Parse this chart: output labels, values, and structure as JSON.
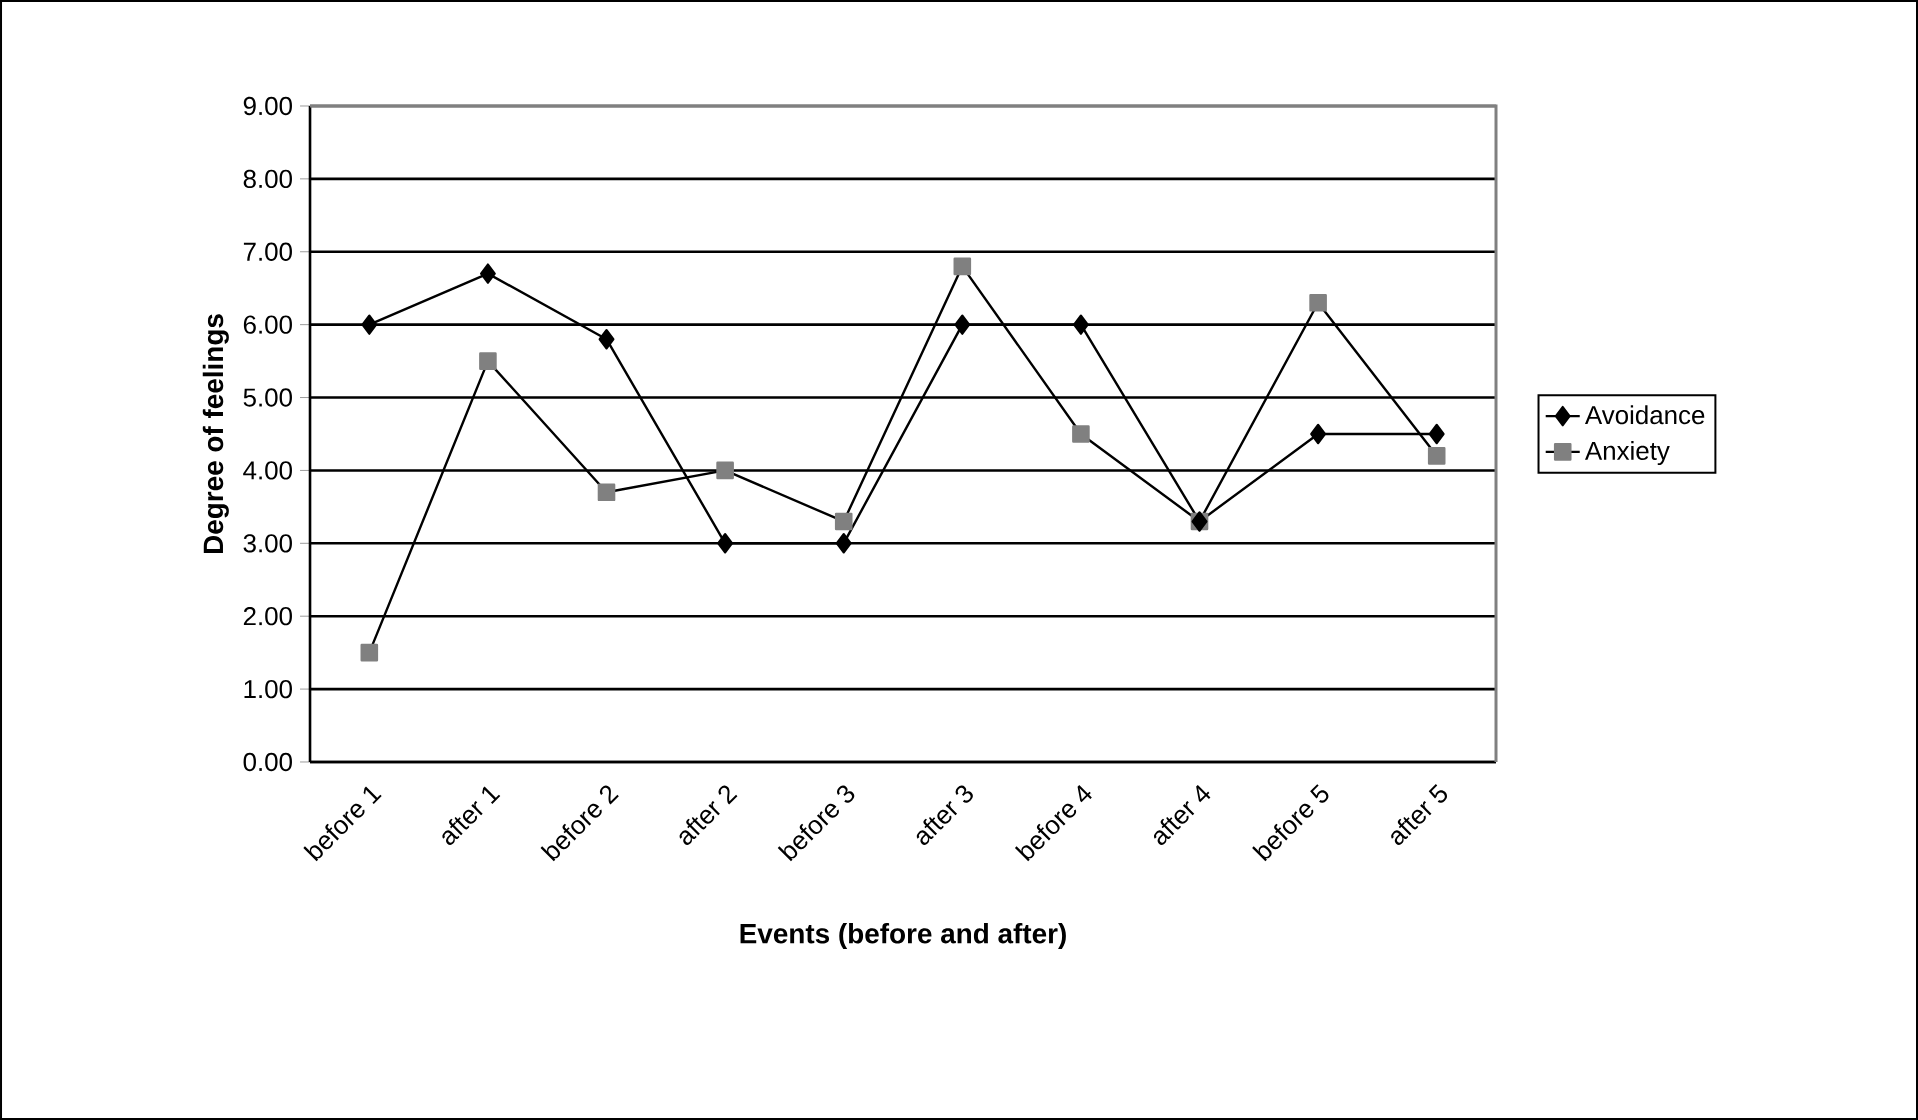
{
  "chart_data": {
    "type": "line",
    "xlabel": "Events (before and after)",
    "ylabel": "Degree of feelings",
    "categories": [
      "before 1",
      "after 1",
      "before 2",
      "after 2",
      "before 3",
      "after 3",
      "before 4",
      "after 4",
      "before 5",
      "after 5"
    ],
    "series": [
      {
        "name": "Avoidance",
        "color": "#000000",
        "marker": "diamond",
        "values": [
          6.0,
          6.7,
          5.8,
          3.0,
          3.0,
          6.0,
          6.0,
          3.3,
          4.5,
          4.5
        ]
      },
      {
        "name": "Anxiety",
        "color": "#808080",
        "marker": "square",
        "values": [
          1.5,
          5.5,
          3.7,
          4.0,
          3.3,
          6.8,
          4.5,
          3.3,
          6.3,
          4.2
        ]
      }
    ],
    "ylim": [
      0,
      9
    ],
    "yticks": [
      {
        "value": 0,
        "label": "0.00"
      },
      {
        "value": 1,
        "label": "1.00"
      },
      {
        "value": 2,
        "label": "2.00"
      },
      {
        "value": 3,
        "label": "3.00"
      },
      {
        "value": 4,
        "label": "4.00"
      },
      {
        "value": 5,
        "label": "5.00"
      },
      {
        "value": 6,
        "label": "6.00"
      },
      {
        "value": 7,
        "label": "7.00"
      },
      {
        "value": 8,
        "label": "8.00"
      },
      {
        "value": 9,
        "label": "9.00"
      }
    ],
    "grid": "y",
    "legend": "right",
    "line_style": "solid"
  }
}
